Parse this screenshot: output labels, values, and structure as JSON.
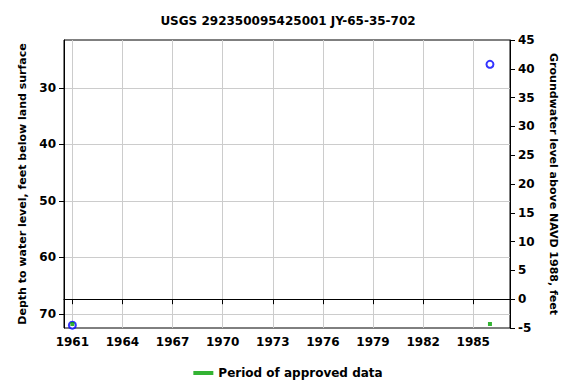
{
  "chart_data": {
    "type": "scatter",
    "title": "USGS 292350095425001 JY-65-35-702",
    "y_label": "Depth to water level, feet below land surface",
    "y2_label": "Groundwater level above NAVD 1988, feet",
    "x": [
      1961,
      1986
    ],
    "values": [
      72,
      25.8
    ],
    "color": "#0000ff",
    "marker": "circle",
    "xlim": [
      1960.5,
      1987.2
    ],
    "xticks": [
      1961,
      1964,
      1967,
      1970,
      1973,
      1976,
      1979,
      1982,
      1985
    ],
    "ylim": [
      72.5,
      21.5
    ],
    "yticks": [
      30,
      40,
      50,
      60,
      70
    ],
    "y2lim": [
      -5,
      45
    ],
    "y2ticks": [
      -5,
      0,
      5,
      10,
      15,
      20,
      25,
      30,
      35,
      40,
      45
    ],
    "approved_periods": {
      "name": "Period of approved data",
      "color": "#00a000",
      "x": [
        1961,
        1986
      ]
    },
    "grid": true,
    "legend": "bottom"
  }
}
